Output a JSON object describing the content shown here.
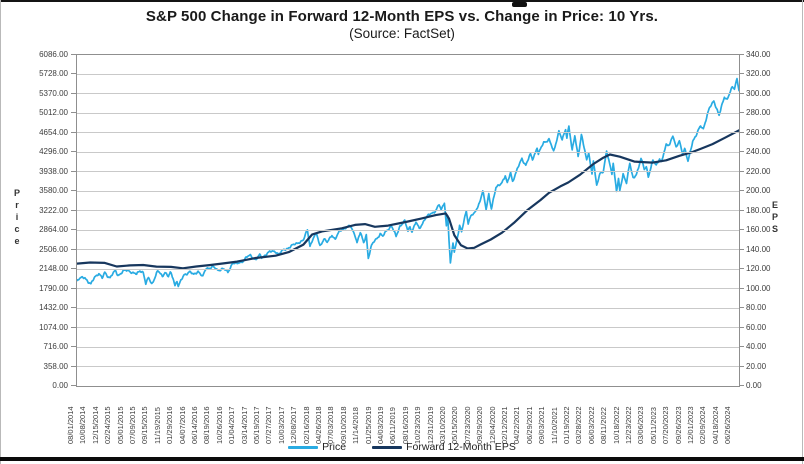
{
  "title": "S&P 500 Change in Forward 12-Month EPS vs. Change in Price: 10 Yrs.",
  "subtitle": "(Source: FactSet)",
  "left_axis": {
    "label": "Price"
  },
  "right_axis": {
    "label": "EPS"
  },
  "chart_data": {
    "type": "line",
    "title": "S&P 500 Change in Forward 12-Month EPS vs. Change in Price: 10 Yrs.",
    "subtitle": "(Source: FactSet)",
    "grid": "horizontal",
    "legend_position": "bottom",
    "x_axis": {
      "unit": "years since 2014-08-01",
      "range": [
        0,
        10
      ],
      "tick_labels": [
        "08/01/2014",
        "10/08/2014",
        "12/15/2014",
        "02/24/2015",
        "05/01/2015",
        "07/09/2015",
        "09/15/2015",
        "11/19/2015",
        "01/29/2016",
        "04/07/2016",
        "06/14/2016",
        "08/19/2016",
        "10/26/2016",
        "01/04/2017",
        "03/14/2017",
        "05/19/2017",
        "07/27/2017",
        "10/03/2017",
        "12/08/2017",
        "02/16/2018",
        "04/26/2018",
        "07/03/2018",
        "09/10/2018",
        "11/14/2018",
        "01/25/2019",
        "04/03/2019",
        "06/11/2019",
        "08/16/2019",
        "10/23/2019",
        "12/31/2019",
        "03/10/2020",
        "05/15/2020",
        "07/23/2020",
        "09/29/2020",
        "12/04/2020",
        "02/12/2021",
        "04/22/2021",
        "06/29/2021",
        "09/03/2021",
        "11/10/2021",
        "01/19/2022",
        "03/28/2022",
        "06/03/2022",
        "08/11/2022",
        "10/18/2022",
        "12/23/2022",
        "03/06/2023",
        "05/11/2023",
        "07/20/2023",
        "09/26/2023",
        "12/01/2023",
        "02/09/2024",
        "04/18/2024",
        "06/26/2024"
      ]
    },
    "y_left": {
      "label": "Price",
      "range": [
        0,
        6086
      ],
      "step": 358
    },
    "y_right": {
      "label": "EPS",
      "range": [
        0,
        340
      ],
      "step": 20
    },
    "series": [
      {
        "name": "Price",
        "axis": "left",
        "color": "#29ABE2",
        "points": [
          [
            0.0,
            1925
          ],
          [
            0.06,
            1985
          ],
          [
            0.12,
            2007
          ],
          [
            0.17,
            1906
          ],
          [
            0.21,
            1862
          ],
          [
            0.27,
            2018
          ],
          [
            0.33,
            2072
          ],
          [
            0.38,
            1972
          ],
          [
            0.42,
            2088
          ],
          [
            0.47,
            2020
          ],
          [
            0.5,
            1995
          ],
          [
            0.58,
            2115
          ],
          [
            0.62,
            2040
          ],
          [
            0.7,
            2108
          ],
          [
            0.78,
            2130
          ],
          [
            0.84,
            2084
          ],
          [
            0.9,
            2046
          ],
          [
            0.95,
            2126
          ],
          [
            1.0,
            2098
          ],
          [
            1.04,
            1868
          ],
          [
            1.08,
            1988
          ],
          [
            1.13,
            1882
          ],
          [
            1.22,
            2109
          ],
          [
            1.29,
            2023
          ],
          [
            1.33,
            2102
          ],
          [
            1.38,
            2005
          ],
          [
            1.41,
            2078
          ],
          [
            1.45,
            1990
          ],
          [
            1.48,
            1859
          ],
          [
            1.51,
            1940
          ],
          [
            1.53,
            1829
          ],
          [
            1.62,
            2050
          ],
          [
            1.7,
            2100
          ],
          [
            1.76,
            2040
          ],
          [
            1.83,
            2119
          ],
          [
            1.9,
            2001
          ],
          [
            1.95,
            2164
          ],
          [
            2.05,
            2190
          ],
          [
            2.12,
            2127
          ],
          [
            2.2,
            2164
          ],
          [
            2.28,
            2085
          ],
          [
            2.35,
            2271
          ],
          [
            2.42,
            2239
          ],
          [
            2.5,
            2298
          ],
          [
            2.56,
            2365
          ],
          [
            2.62,
            2396
          ],
          [
            2.7,
            2329
          ],
          [
            2.76,
            2400
          ],
          [
            2.79,
            2357
          ],
          [
            2.88,
            2453
          ],
          [
            3.0,
            2478
          ],
          [
            3.05,
            2426
          ],
          [
            3.12,
            2496
          ],
          [
            3.2,
            2552
          ],
          [
            3.28,
            2594
          ],
          [
            3.35,
            2648
          ],
          [
            3.42,
            2674
          ],
          [
            3.48,
            2873
          ],
          [
            3.52,
            2581
          ],
          [
            3.58,
            2744
          ],
          [
            3.62,
            2787
          ],
          [
            3.67,
            2582
          ],
          [
            3.73,
            2708
          ],
          [
            3.78,
            2630
          ],
          [
            3.85,
            2786
          ],
          [
            3.9,
            2700
          ],
          [
            3.97,
            2846
          ],
          [
            4.05,
            2914
          ],
          [
            4.13,
            2931
          ],
          [
            4.2,
            2785
          ],
          [
            4.23,
            2641
          ],
          [
            4.28,
            2814
          ],
          [
            4.33,
            2633
          ],
          [
            4.37,
            2790
          ],
          [
            4.4,
            2351
          ],
          [
            4.45,
            2574
          ],
          [
            4.5,
            2681
          ],
          [
            4.58,
            2796
          ],
          [
            4.62,
            2743
          ],
          [
            4.68,
            2867
          ],
          [
            4.75,
            2946
          ],
          [
            4.82,
            2744
          ],
          [
            4.88,
            2954
          ],
          [
            4.95,
            3026
          ],
          [
            5.0,
            2845
          ],
          [
            5.03,
            2938
          ],
          [
            5.06,
            2847
          ],
          [
            5.12,
            3007
          ],
          [
            5.17,
            2888
          ],
          [
            5.25,
            3067
          ],
          [
            5.33,
            3154
          ],
          [
            5.42,
            3231
          ],
          [
            5.47,
            3330
          ],
          [
            5.5,
            3226
          ],
          [
            5.55,
            3386
          ],
          [
            5.58,
            2954
          ],
          [
            5.6,
            3130
          ],
          [
            5.64,
            2237
          ],
          [
            5.68,
            2630
          ],
          [
            5.7,
            2471
          ],
          [
            5.78,
            2940
          ],
          [
            5.81,
            2820
          ],
          [
            5.88,
            3232
          ],
          [
            5.91,
            3002
          ],
          [
            5.95,
            3131
          ],
          [
            6.0,
            3155
          ],
          [
            6.08,
            3380
          ],
          [
            6.13,
            3581
          ],
          [
            6.18,
            3237
          ],
          [
            6.22,
            3534
          ],
          [
            6.26,
            3270
          ],
          [
            6.33,
            3638
          ],
          [
            6.42,
            3756
          ],
          [
            6.47,
            3855
          ],
          [
            6.5,
            3714
          ],
          [
            6.55,
            3935
          ],
          [
            6.58,
            3768
          ],
          [
            6.65,
            3975
          ],
          [
            6.72,
            4185
          ],
          [
            6.78,
            4063
          ],
          [
            6.85,
            4255
          ],
          [
            6.88,
            4166
          ],
          [
            6.95,
            4385
          ],
          [
            6.97,
            4258
          ],
          [
            7.05,
            4480
          ],
          [
            7.13,
            4537
          ],
          [
            7.2,
            4300
          ],
          [
            7.28,
            4698
          ],
          [
            7.33,
            4513
          ],
          [
            7.38,
            4712
          ],
          [
            7.4,
            4568
          ],
          [
            7.43,
            4797
          ],
          [
            7.48,
            4327
          ],
          [
            7.52,
            4587
          ],
          [
            7.57,
            4226
          ],
          [
            7.62,
            4632
          ],
          [
            7.7,
            4132
          ],
          [
            7.73,
            4300
          ],
          [
            7.78,
            3901
          ],
          [
            7.8,
            4158
          ],
          [
            7.85,
            3667
          ],
          [
            7.9,
            3912
          ],
          [
            7.95,
            3960
          ],
          [
            8.0,
            4305
          ],
          [
            8.08,
            3908
          ],
          [
            8.1,
            4110
          ],
          [
            8.15,
            3586
          ],
          [
            8.18,
            3791
          ],
          [
            8.2,
            3577
          ],
          [
            8.25,
            3901
          ],
          [
            8.3,
            3748
          ],
          [
            8.35,
            4080
          ],
          [
            8.4,
            3818
          ],
          [
            8.42,
            3840
          ],
          [
            8.48,
            3999
          ],
          [
            8.52,
            4180
          ],
          [
            8.57,
            3981
          ],
          [
            8.6,
            4048
          ],
          [
            8.63,
            3856
          ],
          [
            8.7,
            4138
          ],
          [
            8.75,
            4061
          ],
          [
            8.8,
            4192
          ],
          [
            8.83,
            4115
          ],
          [
            8.9,
            4426
          ],
          [
            8.95,
            4450
          ],
          [
            9.0,
            4607
          ],
          [
            9.05,
            4370
          ],
          [
            9.1,
            4516
          ],
          [
            9.15,
            4274
          ],
          [
            9.18,
            4358
          ],
          [
            9.23,
            4117
          ],
          [
            9.3,
            4514
          ],
          [
            9.35,
            4595
          ],
          [
            9.42,
            4783
          ],
          [
            9.46,
            4739
          ],
          [
            9.55,
            5089
          ],
          [
            9.62,
            5254
          ],
          [
            9.7,
            4967
          ],
          [
            9.78,
            5321
          ],
          [
            9.82,
            5278
          ],
          [
            9.9,
            5487
          ],
          [
            9.93,
            5460
          ],
          [
            9.97,
            5667
          ],
          [
            10.0,
            5446
          ]
        ]
      },
      {
        "name": "Forward 12-Month EPS",
        "axis": "right",
        "color": "#17375E",
        "points": [
          [
            0.0,
            125.7
          ],
          [
            0.2,
            126.9
          ],
          [
            0.42,
            126.4
          ],
          [
            0.6,
            122.8
          ],
          [
            0.8,
            123.9
          ],
          [
            1.0,
            124.3
          ],
          [
            1.2,
            122.6
          ],
          [
            1.42,
            122.3
          ],
          [
            1.6,
            120.9
          ],
          [
            1.8,
            122.8
          ],
          [
            2.0,
            124.2
          ],
          [
            2.2,
            125.8
          ],
          [
            2.42,
            127.8
          ],
          [
            2.7,
            131.5
          ],
          [
            3.0,
            133.8
          ],
          [
            3.2,
            137.5
          ],
          [
            3.42,
            145.2
          ],
          [
            3.55,
            155.5
          ],
          [
            3.7,
            158.8
          ],
          [
            4.0,
            162.0
          ],
          [
            4.2,
            165.5
          ],
          [
            4.35,
            166.3
          ],
          [
            4.5,
            163.5
          ],
          [
            4.7,
            164.8
          ],
          [
            5.0,
            169.0
          ],
          [
            5.2,
            172.0
          ],
          [
            5.42,
            175.5
          ],
          [
            5.57,
            177.3
          ],
          [
            5.62,
            172.0
          ],
          [
            5.7,
            155.0
          ],
          [
            5.8,
            144.5
          ],
          [
            5.9,
            141.2
          ],
          [
            6.0,
            142.0
          ],
          [
            6.1,
            145.5
          ],
          [
            6.25,
            150.5
          ],
          [
            6.42,
            157.5
          ],
          [
            6.6,
            167.5
          ],
          [
            6.8,
            180.5
          ],
          [
            7.0,
            191.0
          ],
          [
            7.13,
            198.5
          ],
          [
            7.3,
            205.0
          ],
          [
            7.42,
            209.0
          ],
          [
            7.6,
            217.0
          ],
          [
            7.8,
            228.0
          ],
          [
            7.95,
            234.5
          ],
          [
            8.05,
            237.8
          ],
          [
            8.2,
            235.5
          ],
          [
            8.42,
            230.5
          ],
          [
            8.55,
            230.0
          ],
          [
            8.7,
            229.5
          ],
          [
            8.9,
            231.8
          ],
          [
            9.1,
            236.5
          ],
          [
            9.3,
            240.5
          ],
          [
            9.42,
            243.5
          ],
          [
            9.6,
            248.5
          ],
          [
            9.8,
            255.5
          ],
          [
            10.0,
            262.5
          ]
        ]
      }
    ]
  }
}
